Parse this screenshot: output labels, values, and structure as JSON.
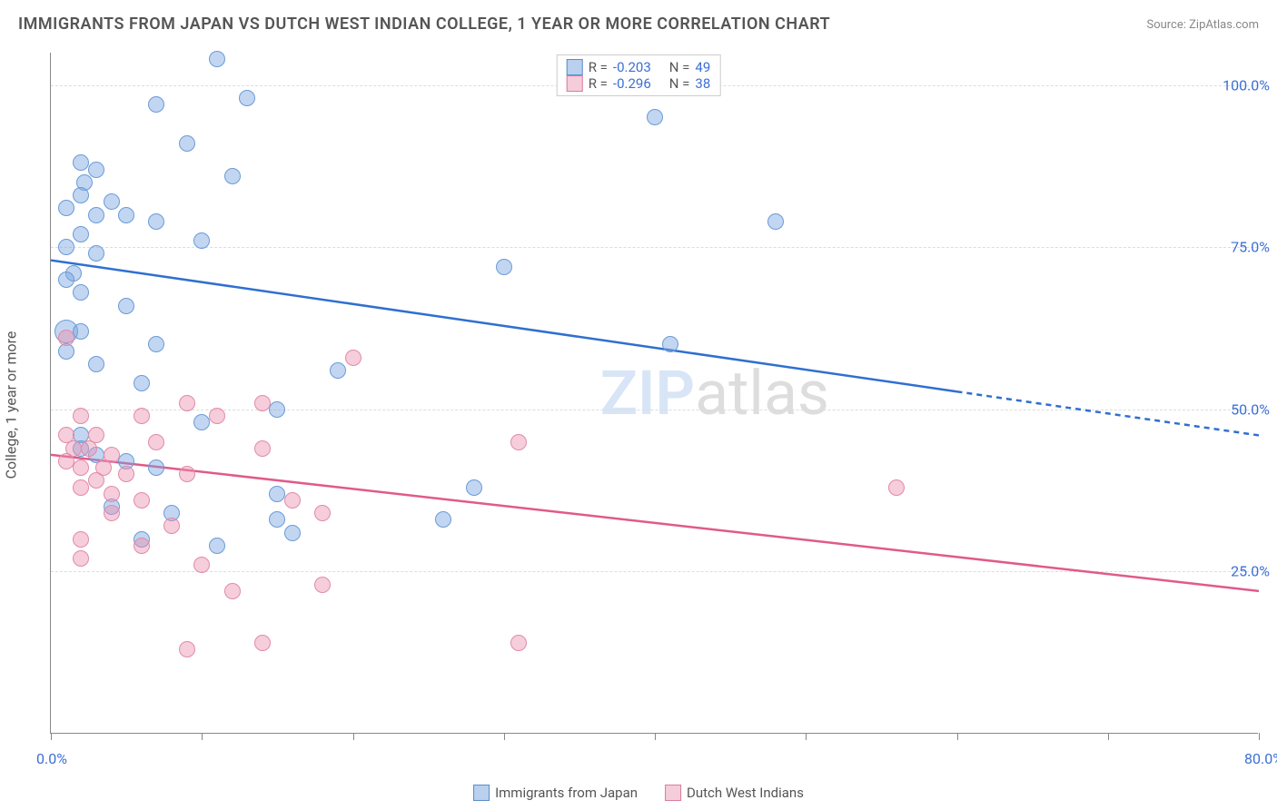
{
  "title": "IMMIGRANTS FROM JAPAN VS DUTCH WEST INDIAN COLLEGE, 1 YEAR OR MORE CORRELATION CHART",
  "source": "Source: ZipAtlas.com",
  "yaxis_label": "College, 1 year or more",
  "watermark_zip": "ZIP",
  "watermark_atlas": "atlas",
  "chart": {
    "type": "scatter",
    "xlim": [
      0,
      80
    ],
    "ylim": [
      0,
      105
    ],
    "xticks": [
      0,
      10,
      20,
      30,
      40,
      50,
      60,
      70,
      80
    ],
    "xtick_labels": {
      "0": "0.0%",
      "80": "80.0%"
    },
    "yticks": [
      25,
      50,
      75,
      100
    ],
    "ytick_labels": [
      "25.0%",
      "50.0%",
      "75.0%",
      "100.0%"
    ],
    "grid_color": "#dddddd",
    "background_color": "#ffffff",
    "axis_color": "#888888"
  },
  "series": [
    {
      "name": "Immigrants from Japan",
      "label": "Immigrants from Japan",
      "fill": "rgba(120, 165, 225, 0.45)",
      "stroke": "#6a9bd8",
      "swatch_fill": "#b9d0ee",
      "swatch_stroke": "#5a8cc9",
      "marker_radius": 9,
      "R": "-0.203",
      "N": "49",
      "trend": {
        "x1": 0,
        "y1": 73,
        "x2": 80,
        "y2": 46,
        "solid_until_x": 60,
        "color": "#2f6fd0",
        "width": 2.5
      },
      "points": [
        {
          "x": 11,
          "y": 104
        },
        {
          "x": 13,
          "y": 98
        },
        {
          "x": 7,
          "y": 97
        },
        {
          "x": 40,
          "y": 95
        },
        {
          "x": 9,
          "y": 91
        },
        {
          "x": 2,
          "y": 88
        },
        {
          "x": 3,
          "y": 87
        },
        {
          "x": 2.2,
          "y": 85
        },
        {
          "x": 12,
          "y": 86
        },
        {
          "x": 2,
          "y": 83
        },
        {
          "x": 4,
          "y": 82
        },
        {
          "x": 1,
          "y": 81
        },
        {
          "x": 3,
          "y": 80
        },
        {
          "x": 5,
          "y": 80
        },
        {
          "x": 7,
          "y": 79
        },
        {
          "x": 48,
          "y": 79
        },
        {
          "x": 2,
          "y": 77
        },
        {
          "x": 10,
          "y": 76
        },
        {
          "x": 1,
          "y": 75
        },
        {
          "x": 3,
          "y": 74
        },
        {
          "x": 30,
          "y": 72
        },
        {
          "x": 1.5,
          "y": 71
        },
        {
          "x": 1,
          "y": 70
        },
        {
          "x": 2,
          "y": 68
        },
        {
          "x": 5,
          "y": 66
        },
        {
          "x": 1,
          "y": 62,
          "r": 13
        },
        {
          "x": 2,
          "y": 62
        },
        {
          "x": 7,
          "y": 60
        },
        {
          "x": 41,
          "y": 60
        },
        {
          "x": 1,
          "y": 59
        },
        {
          "x": 3,
          "y": 57
        },
        {
          "x": 19,
          "y": 56
        },
        {
          "x": 6,
          "y": 54
        },
        {
          "x": 15,
          "y": 50
        },
        {
          "x": 10,
          "y": 48
        },
        {
          "x": 2,
          "y": 46
        },
        {
          "x": 2,
          "y": 44
        },
        {
          "x": 3,
          "y": 43
        },
        {
          "x": 5,
          "y": 42
        },
        {
          "x": 7,
          "y": 41
        },
        {
          "x": 15,
          "y": 37
        },
        {
          "x": 28,
          "y": 38
        },
        {
          "x": 4,
          "y": 35
        },
        {
          "x": 8,
          "y": 34
        },
        {
          "x": 15,
          "y": 33
        },
        {
          "x": 16,
          "y": 31
        },
        {
          "x": 26,
          "y": 33
        },
        {
          "x": 6,
          "y": 30
        },
        {
          "x": 11,
          "y": 29
        }
      ]
    },
    {
      "name": "Dutch West Indians",
      "label": "Dutch West Indians",
      "fill": "rgba(235, 145, 175, 0.45)",
      "stroke": "#e28aa8",
      "swatch_fill": "#f5cdda",
      "swatch_stroke": "#d97ba0",
      "marker_radius": 9,
      "R": "-0.296",
      "N": "38",
      "trend": {
        "x1": 0,
        "y1": 43,
        "x2": 80,
        "y2": 22,
        "solid_until_x": 80,
        "color": "#e05a8a",
        "width": 2.5
      },
      "points": [
        {
          "x": 1,
          "y": 61
        },
        {
          "x": 20,
          "y": 58
        },
        {
          "x": 14,
          "y": 51
        },
        {
          "x": 9,
          "y": 51
        },
        {
          "x": 2,
          "y": 49
        },
        {
          "x": 6,
          "y": 49
        },
        {
          "x": 11,
          "y": 49
        },
        {
          "x": 1,
          "y": 46
        },
        {
          "x": 3,
          "y": 46
        },
        {
          "x": 7,
          "y": 45
        },
        {
          "x": 31,
          "y": 45
        },
        {
          "x": 1.5,
          "y": 44
        },
        {
          "x": 2.5,
          "y": 44
        },
        {
          "x": 4,
          "y": 43
        },
        {
          "x": 14,
          "y": 44
        },
        {
          "x": 1,
          "y": 42
        },
        {
          "x": 2,
          "y": 41
        },
        {
          "x": 3.5,
          "y": 41
        },
        {
          "x": 5,
          "y": 40
        },
        {
          "x": 9,
          "y": 40
        },
        {
          "x": 3,
          "y": 39
        },
        {
          "x": 2,
          "y": 38
        },
        {
          "x": 4,
          "y": 37
        },
        {
          "x": 6,
          "y": 36
        },
        {
          "x": 56,
          "y": 38
        },
        {
          "x": 16,
          "y": 36
        },
        {
          "x": 4,
          "y": 34
        },
        {
          "x": 8,
          "y": 32
        },
        {
          "x": 18,
          "y": 34
        },
        {
          "x": 2,
          "y": 30
        },
        {
          "x": 6,
          "y": 29
        },
        {
          "x": 2,
          "y": 27
        },
        {
          "x": 10,
          "y": 26
        },
        {
          "x": 12,
          "y": 22
        },
        {
          "x": 18,
          "y": 23
        },
        {
          "x": 14,
          "y": 14
        },
        {
          "x": 31,
          "y": 14
        },
        {
          "x": 9,
          "y": 13
        }
      ]
    }
  ],
  "legend_top": {
    "R_label": "R =",
    "N_label": "N ="
  }
}
